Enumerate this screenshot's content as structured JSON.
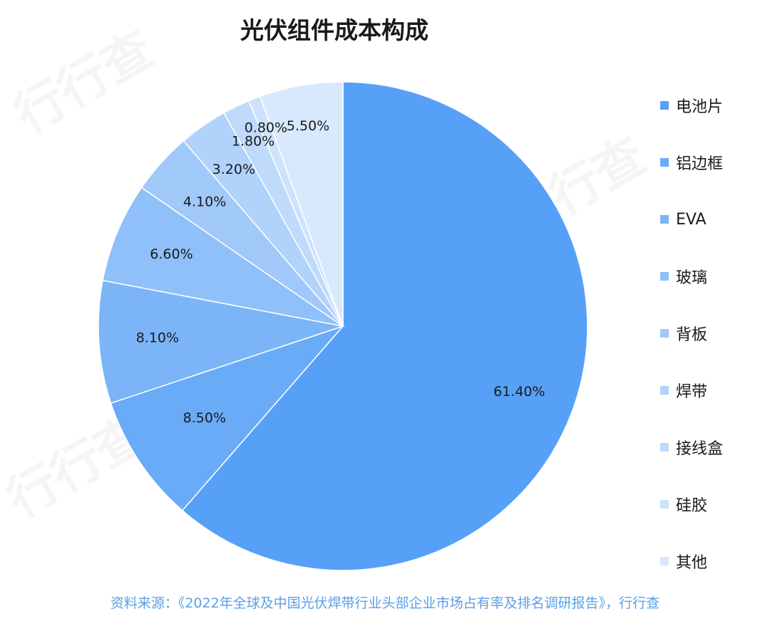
{
  "chart_data": {
    "type": "pie",
    "title": "光伏组件成本构成",
    "categories": [
      "电池片",
      "铝边框",
      "EVA",
      "玻璃",
      "背板",
      "焊带",
      "接线盒",
      "硅胶",
      "其他"
    ],
    "values": [
      61.4,
      8.5,
      8.1,
      6.6,
      4.1,
      3.2,
      1.8,
      0.8,
      5.5
    ],
    "value_labels": [
      "61.40%",
      "8.50%",
      "8.10%",
      "6.60%",
      "4.10%",
      "3.20%",
      "1.80%",
      "0.80%",
      "5.50%"
    ],
    "colors": [
      "#57a0f7",
      "#6aabf7",
      "#7bb5f8",
      "#8fc0f9",
      "#a0c9fa",
      "#b0d2fb",
      "#bfdafb",
      "#cde2fc",
      "#d9e9fd"
    ],
    "legend_position": "right",
    "start": "12 o'clock",
    "direction": "clockwise"
  },
  "source_text": "资料来源：《2022年全球及中国光伏焊带行业头部企业市场占有率及排名调研报告》，行行查",
  "watermark": "行行查"
}
